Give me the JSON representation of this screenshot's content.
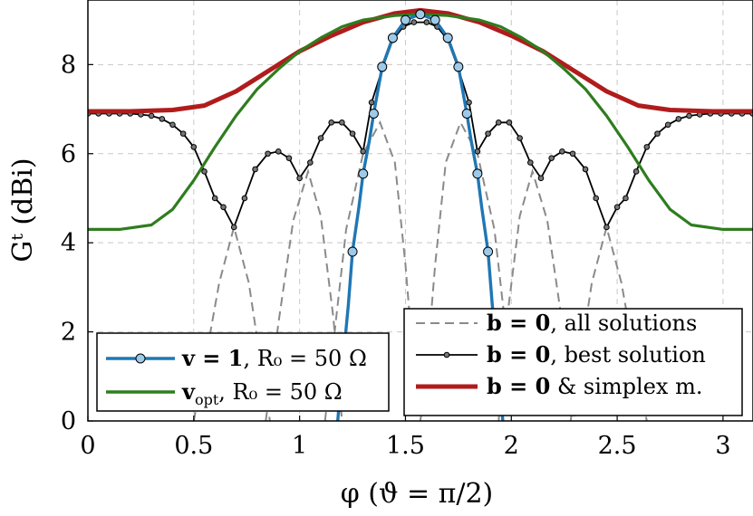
{
  "chart_data": {
    "type": "line",
    "xlabel": "φ (ϑ = π/2)",
    "ylabel": "Gᵗ (dBi)",
    "xlim": [
      0,
      3.14159
    ],
    "ylim": [
      0,
      9.45
    ],
    "xticks": [
      "0",
      "0.5",
      "1",
      "1.5",
      "2",
      "2.5",
      "3"
    ],
    "xtick_values": [
      0,
      0.5,
      1,
      1.5,
      2,
      2.5,
      3
    ],
    "yticks": [
      "0",
      "2",
      "4",
      "6",
      "8"
    ],
    "ytick_values": [
      0,
      2,
      4,
      6,
      8
    ],
    "grid": true,
    "legend_left_placement": "bottom-left",
    "legend_right_placement": "bottom-right",
    "series": [
      {
        "name": "b = 0, all solutions",
        "color": "#8a8a8a",
        "style": "dashed",
        "segments": [
          [
            [
              0.5,
              0.0
            ],
            [
              0.56,
              1.5
            ],
            [
              0.62,
              3.1
            ],
            [
              0.69,
              4.35
            ],
            [
              0.76,
              3.1
            ],
            [
              0.82,
              1.2
            ],
            [
              0.86,
              0.0
            ]
          ],
          [
            [
              0.84,
              0.0
            ],
            [
              0.9,
              2.2
            ],
            [
              0.97,
              4.5
            ],
            [
              1.04,
              5.6
            ],
            [
              1.1,
              4.6
            ],
            [
              1.16,
              2.3
            ],
            [
              1.2,
              0.0
            ]
          ],
          [
            [
              1.12,
              0.0
            ],
            [
              1.17,
              2.2
            ],
            [
              1.22,
              4.3
            ],
            [
              1.3,
              6.0
            ],
            [
              1.38,
              6.7
            ],
            [
              1.45,
              5.8
            ],
            [
              1.5,
              3.5
            ],
            [
              1.55,
              0.6
            ],
            [
              1.57,
              0.0
            ]
          ],
          [
            [
              1.57,
              0.0
            ],
            [
              1.59,
              0.6
            ],
            [
              1.64,
              3.5
            ],
            [
              1.69,
              5.8
            ],
            [
              1.76,
              6.7
            ],
            [
              1.84,
              6.0
            ],
            [
              1.92,
              4.3
            ],
            [
              1.97,
              2.2
            ],
            [
              2.02,
              0.0
            ]
          ],
          [
            [
              1.94,
              0.0
            ],
            [
              1.98,
              2.3
            ],
            [
              2.04,
              4.6
            ],
            [
              2.1,
              5.6
            ],
            [
              2.17,
              4.5
            ],
            [
              2.24,
              2.2
            ],
            [
              2.3,
              0.0
            ]
          ],
          [
            [
              2.28,
              0.0
            ],
            [
              2.32,
              1.2
            ],
            [
              2.38,
              3.1
            ],
            [
              2.45,
              4.35
            ],
            [
              2.52,
              3.1
            ],
            [
              2.58,
              1.5
            ],
            [
              2.64,
              0.0
            ]
          ]
        ]
      },
      {
        "name": "b = 0, best solution",
        "color": "#000000",
        "points": [
          [
            0.0,
            6.9
          ],
          [
            0.05,
            6.9
          ],
          [
            0.1,
            6.9
          ],
          [
            0.15,
            6.9
          ],
          [
            0.2,
            6.9
          ],
          [
            0.25,
            6.88
          ],
          [
            0.3,
            6.85
          ],
          [
            0.35,
            6.78
          ],
          [
            0.4,
            6.65
          ],
          [
            0.45,
            6.45
          ],
          [
            0.5,
            6.15
          ],
          [
            0.55,
            5.6
          ],
          [
            0.6,
            5.0
          ],
          [
            0.64,
            4.8
          ],
          [
            0.69,
            4.35
          ],
          [
            0.74,
            5.0
          ],
          [
            0.79,
            5.65
          ],
          [
            0.85,
            6.0
          ],
          [
            0.9,
            6.05
          ],
          [
            0.95,
            5.9
          ],
          [
            1.0,
            5.45
          ],
          [
            1.05,
            5.8
          ],
          [
            1.1,
            6.35
          ],
          [
            1.15,
            6.7
          ],
          [
            1.2,
            6.7
          ],
          [
            1.25,
            6.45
          ],
          [
            1.3,
            6.05
          ],
          [
            1.34,
            7.15
          ],
          [
            1.39,
            7.9
          ],
          [
            1.44,
            8.55
          ],
          [
            1.49,
            8.85
          ],
          [
            1.54,
            8.95
          ],
          [
            1.6,
            8.95
          ],
          [
            1.65,
            8.85
          ],
          [
            1.7,
            8.55
          ],
          [
            1.75,
            7.9
          ],
          [
            1.8,
            7.15
          ],
          [
            1.84,
            6.05
          ],
          [
            1.89,
            6.45
          ],
          [
            1.94,
            6.7
          ],
          [
            1.99,
            6.7
          ],
          [
            2.04,
            6.35
          ],
          [
            2.09,
            5.8
          ],
          [
            2.14,
            5.45
          ],
          [
            2.19,
            5.9
          ],
          [
            2.24,
            6.05
          ],
          [
            2.29,
            6.0
          ],
          [
            2.35,
            5.65
          ],
          [
            2.4,
            5.0
          ],
          [
            2.45,
            4.35
          ],
          [
            2.5,
            4.8
          ],
          [
            2.54,
            5.0
          ],
          [
            2.59,
            5.6
          ],
          [
            2.64,
            6.15
          ],
          [
            2.69,
            6.45
          ],
          [
            2.74,
            6.65
          ],
          [
            2.79,
            6.78
          ],
          [
            2.84,
            6.85
          ],
          [
            2.89,
            6.88
          ],
          [
            2.94,
            6.9
          ],
          [
            2.99,
            6.9
          ],
          [
            3.04,
            6.9
          ],
          [
            3.09,
            6.9
          ],
          [
            3.14,
            6.9
          ]
        ]
      },
      {
        "name": "b = 0 & simplex m.",
        "color": "#b01c1c",
        "points": [
          [
            0.0,
            6.95
          ],
          [
            0.2,
            6.95
          ],
          [
            0.4,
            6.98
          ],
          [
            0.55,
            7.08
          ],
          [
            0.7,
            7.4
          ],
          [
            0.85,
            7.85
          ],
          [
            1.0,
            8.3
          ],
          [
            1.15,
            8.65
          ],
          [
            1.3,
            8.95
          ],
          [
            1.45,
            9.15
          ],
          [
            1.57,
            9.22
          ],
          [
            1.7,
            9.15
          ],
          [
            1.85,
            8.95
          ],
          [
            2.0,
            8.65
          ],
          [
            2.15,
            8.3
          ],
          [
            2.3,
            7.85
          ],
          [
            2.45,
            7.4
          ],
          [
            2.6,
            7.08
          ],
          [
            2.75,
            6.98
          ],
          [
            2.95,
            6.95
          ],
          [
            3.14,
            6.95
          ]
        ]
      },
      {
        "name": "v_opt, R₀ = 50 Ω",
        "color": "#2e7d1e",
        "points": [
          [
            0.0,
            4.3
          ],
          [
            0.15,
            4.3
          ],
          [
            0.3,
            4.4
          ],
          [
            0.4,
            4.75
          ],
          [
            0.5,
            5.4
          ],
          [
            0.6,
            6.15
          ],
          [
            0.7,
            6.85
          ],
          [
            0.8,
            7.45
          ],
          [
            0.9,
            7.9
          ],
          [
            1.0,
            8.3
          ],
          [
            1.1,
            8.6
          ],
          [
            1.2,
            8.85
          ],
          [
            1.3,
            9.0
          ],
          [
            1.45,
            9.1
          ],
          [
            1.57,
            9.13
          ],
          [
            1.7,
            9.1
          ],
          [
            1.85,
            9.0
          ],
          [
            1.95,
            8.85
          ],
          [
            2.05,
            8.6
          ],
          [
            2.15,
            8.3
          ],
          [
            2.25,
            7.9
          ],
          [
            2.35,
            7.45
          ],
          [
            2.45,
            6.85
          ],
          [
            2.55,
            6.15
          ],
          [
            2.65,
            5.4
          ],
          [
            2.75,
            4.75
          ],
          [
            2.85,
            4.4
          ],
          [
            3.0,
            4.3
          ],
          [
            3.14,
            4.3
          ]
        ]
      },
      {
        "name": "v = 1, R₀ = 50 Ω",
        "color": "#1f77b4",
        "markers": [
          [
            1.25,
            3.8
          ],
          [
            1.3,
            5.55
          ],
          [
            1.35,
            6.9
          ],
          [
            1.39,
            7.95
          ],
          [
            1.44,
            8.6
          ],
          [
            1.5,
            9.0
          ],
          [
            1.57,
            9.13
          ],
          [
            1.64,
            9.0
          ],
          [
            1.7,
            8.6
          ],
          [
            1.75,
            7.95
          ],
          [
            1.79,
            6.9
          ],
          [
            1.84,
            5.55
          ],
          [
            1.89,
            3.8
          ]
        ],
        "points": [
          [
            1.18,
            0.0
          ],
          [
            1.2,
            1.1
          ],
          [
            1.23,
            2.6
          ],
          [
            1.25,
            3.8
          ],
          [
            1.28,
            4.8
          ],
          [
            1.3,
            5.55
          ],
          [
            1.33,
            6.3
          ],
          [
            1.35,
            6.9
          ],
          [
            1.39,
            7.95
          ],
          [
            1.44,
            8.6
          ],
          [
            1.5,
            9.0
          ],
          [
            1.57,
            9.13
          ],
          [
            1.64,
            9.0
          ],
          [
            1.7,
            8.6
          ],
          [
            1.75,
            7.95
          ],
          [
            1.79,
            6.9
          ],
          [
            1.81,
            6.3
          ],
          [
            1.84,
            5.55
          ],
          [
            1.86,
            4.8
          ],
          [
            1.89,
            3.8
          ],
          [
            1.91,
            2.6
          ],
          [
            1.94,
            1.1
          ],
          [
            1.96,
            0.0
          ]
        ]
      }
    ],
    "legend_left": [
      {
        "label_bold": "v = 1",
        "label_rest": ", R₀ = 50 Ω",
        "color": "#1f77b4",
        "marker": true
      },
      {
        "label_bold": "v",
        "label_sub": "opt",
        "label_rest": ", R₀ = 50 Ω",
        "color": "#2e7d1e",
        "marker": false
      }
    ],
    "legend_right": [
      {
        "label_bold": "b = 0",
        "label_rest": ", all solutions",
        "color": "#8a8a8a",
        "style": "dashed"
      },
      {
        "label_bold": "b = 0",
        "label_rest": ", best solution",
        "color": "#000000",
        "style": "dots"
      },
      {
        "label_bold": "b = 0",
        "label_rest": " & simplex m.",
        "color": "#b01c1c",
        "style": "thick"
      }
    ]
  }
}
